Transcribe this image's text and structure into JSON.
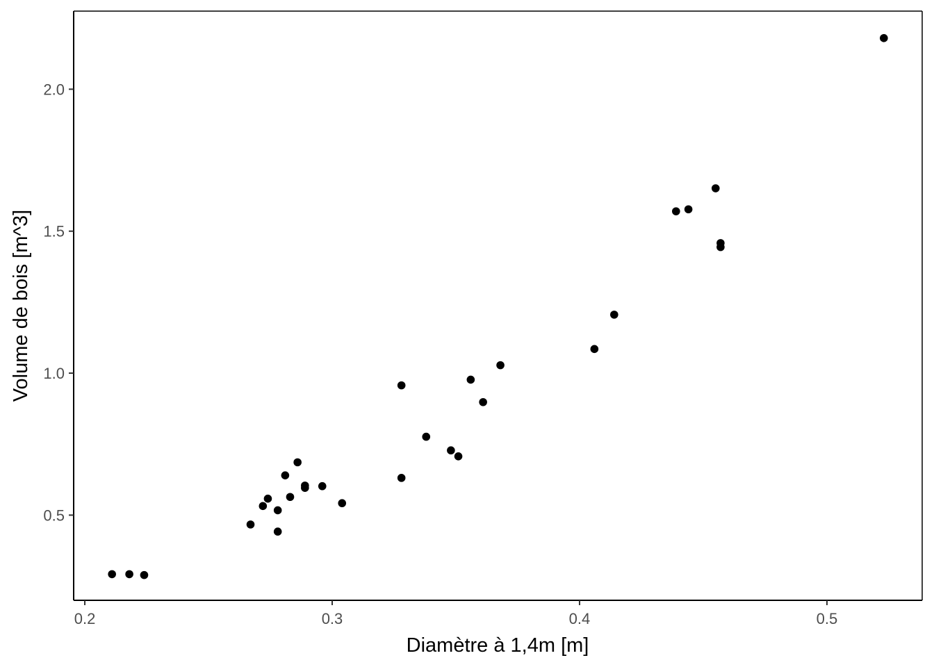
{
  "chart_data": {
    "type": "scatter",
    "title": "",
    "xlabel": "Diamètre à 1,4m  [m]",
    "ylabel": "Volume de bois  [m^3]",
    "xlim": [
      0.1955,
      0.5385
    ],
    "ylim": [
      0.2,
      2.275
    ],
    "xticks": [
      0.2,
      0.3,
      0.4,
      0.5
    ],
    "xtick_labels": [
      "0.2",
      "0.3",
      "0.4",
      "0.5"
    ],
    "yticks": [
      0.5,
      1.0,
      1.5,
      2.0
    ],
    "ytick_labels": [
      "0.5",
      "1.0",
      "1.5",
      "2.0"
    ],
    "grid": false,
    "point_color": "#000000",
    "series": [
      {
        "x": [
          0.211,
          0.218,
          0.224,
          0.267,
          0.272,
          0.274,
          0.278,
          0.278,
          0.281,
          0.283,
          0.286,
          0.289,
          0.289,
          0.296,
          0.304,
          0.328,
          0.328,
          0.338,
          0.348,
          0.351,
          0.356,
          0.361,
          0.368,
          0.406,
          0.414,
          0.439,
          0.444,
          0.455,
          0.457,
          0.457,
          0.523
        ],
        "y": [
          0.292,
          0.292,
          0.289,
          0.467,
          0.532,
          0.558,
          0.517,
          0.442,
          0.64,
          0.564,
          0.686,
          0.604,
          0.596,
          0.602,
          0.542,
          0.631,
          0.957,
          0.776,
          0.728,
          0.707,
          0.977,
          0.898,
          1.028,
          1.085,
          1.206,
          1.57,
          1.577,
          1.651,
          1.458,
          1.444,
          2.18
        ]
      }
    ]
  }
}
